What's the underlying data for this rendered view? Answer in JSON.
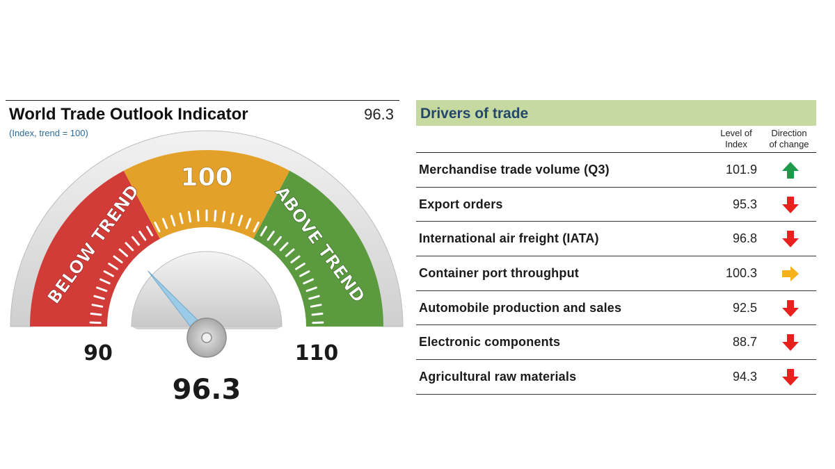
{
  "indicator": {
    "title": "World Trade Outlook Indicator",
    "subtitle": "(Index, trend = 100)",
    "value_text": "96.3"
  },
  "gauge": {
    "min": 90,
    "max": 110,
    "center_label": "100",
    "min_label": "90",
    "max_label": "110",
    "value": 96.3,
    "value_label": "96.3",
    "below_label": "BELOW TREND",
    "above_label": "ABOVE TREND",
    "colors": {
      "below": "#d13b38",
      "trend": "#e3a12a",
      "above": "#5b9a3f",
      "needle": "#9ccbe8"
    }
  },
  "drivers": {
    "title": "Drivers of trade",
    "col_level_line1": "Level of",
    "col_level_line2": "Index",
    "col_dir_line1": "Direction",
    "col_dir_line2": "of change",
    "rows": [
      {
        "label": "Merchandise trade volume (Q3)",
        "value": "101.9",
        "direction": "up"
      },
      {
        "label": "Export orders",
        "value": "95.3",
        "direction": "down"
      },
      {
        "label": "International air freight (IATA)",
        "value": "96.8",
        "direction": "down"
      },
      {
        "label": "Container port throughput",
        "value": "100.3",
        "direction": "right"
      },
      {
        "label": "Automobile production and sales",
        "value": "92.5",
        "direction": "down"
      },
      {
        "label": "Electronic components",
        "value": "88.7",
        "direction": "down"
      },
      {
        "label": "Agricultural raw materials",
        "value": "94.3",
        "direction": "down"
      }
    ],
    "arrow_colors": {
      "up": "#1f9a4b",
      "down": "#e8211f",
      "right": "#f5b21b"
    }
  },
  "chart_data": {
    "type": "table",
    "title": "Drivers of trade",
    "columns": [
      "Level of Index",
      "Direction of change"
    ],
    "categories": [
      "Merchandise trade volume (Q3)",
      "Export orders",
      "International air freight (IATA)",
      "Container port throughput",
      "Automobile production and sales",
      "Electronic components",
      "Agricultural raw materials"
    ],
    "values": [
      101.9,
      95.3,
      96.8,
      100.3,
      92.5,
      88.7,
      94.3
    ],
    "directions": [
      "up",
      "down",
      "down",
      "right",
      "down",
      "down",
      "down"
    ],
    "gauge_value": 96.3,
    "gauge_range": [
      90,
      110
    ],
    "gauge_trend": 100
  }
}
